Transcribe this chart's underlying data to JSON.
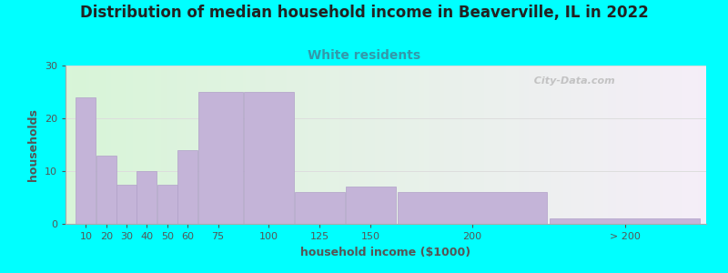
{
  "title": "Distribution of median household income in Beaverville, IL in 2022",
  "subtitle": "White residents",
  "xlabel": "household income ($1000)",
  "ylabel": "households",
  "background_color": "#00FFFF",
  "bar_color": "#c4b4d8",
  "bar_edgecolor": "#b0a0c8",
  "title_fontsize": 12,
  "subtitle_fontsize": 10,
  "subtitle_color": "#3399aa",
  "xlabel_fontsize": 9,
  "ylabel_fontsize": 9,
  "tick_fontsize": 8,
  "watermark": "  City-Data.com",
  "values": [
    24,
    13,
    7.5,
    10,
    7.5,
    14,
    25,
    25,
    6,
    7,
    6,
    1
  ],
  "bar_lefts": [
    5,
    15,
    25,
    35,
    45,
    55,
    65,
    87.5,
    112.5,
    137.5,
    162.5,
    237.5
  ],
  "bar_widths": [
    10,
    10,
    10,
    10,
    10,
    10,
    22.5,
    25,
    25,
    25,
    75,
    75
  ],
  "xtick_positions": [
    10,
    20,
    30,
    40,
    50,
    60,
    75,
    100,
    125,
    150,
    200,
    275
  ],
  "xtick_labels": [
    "10",
    "20",
    "30",
    "40",
    "50",
    "60",
    "75",
    "100",
    "125",
    "150",
    "200",
    "> 200"
  ],
  "ylim": [
    0,
    30
  ],
  "xlim": [
    0,
    315
  ],
  "yticks": [
    0,
    10,
    20,
    30
  ],
  "grid_color": "#dddddd"
}
